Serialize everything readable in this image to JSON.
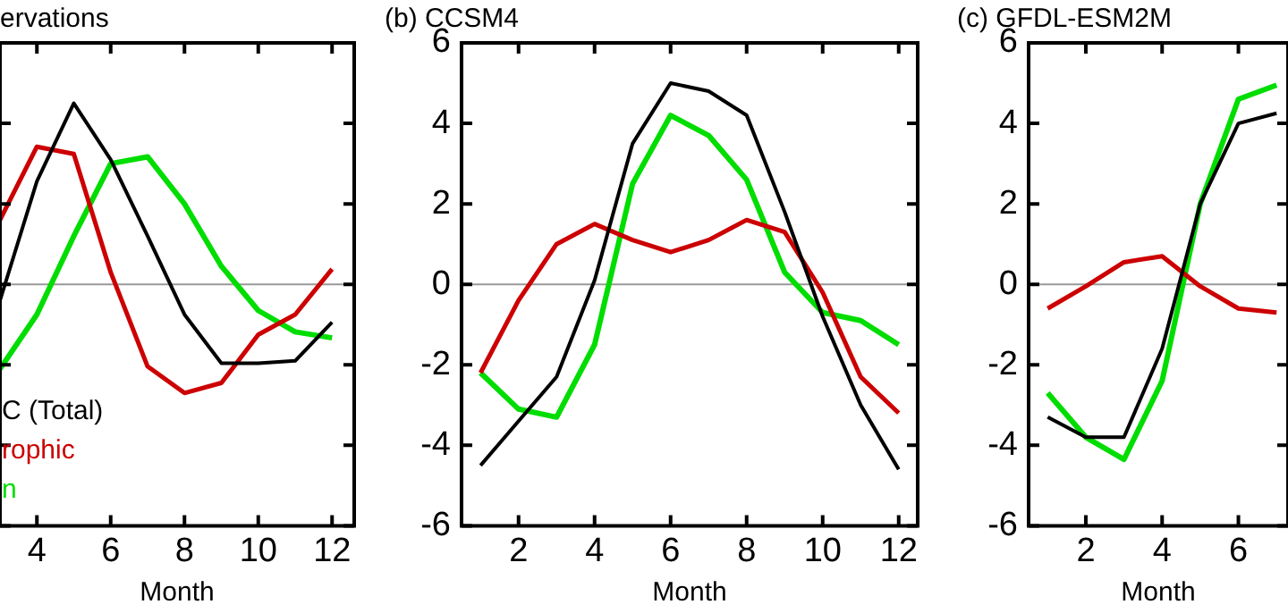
{
  "chart_data": [
    {
      "type": "line",
      "title": "ervations",
      "xlabel": "Month",
      "x": [
        3,
        4,
        5,
        6,
        7,
        8,
        9,
        10,
        11,
        12
      ],
      "xlim": [
        3,
        12.6
      ],
      "xticks": [
        4,
        6,
        8,
        10,
        12
      ],
      "ylim": [
        -6,
        6
      ],
      "yticks": [
        -6,
        -4,
        -2,
        0,
        2,
        4,
        6
      ],
      "tick_labels": "x",
      "legend": "bottom left",
      "grid": false,
      "ref_lines": [
        {
          "axis": "y",
          "value": 0,
          "color": "#999999"
        }
      ],
      "series": [
        {
          "name": "C (Total)",
          "color": "#000000",
          "values": [
            -0.4,
            2.56,
            4.5,
            3.1,
            1.2,
            -0.75,
            -1.96,
            -1.96,
            -1.9,
            -0.94
          ]
        },
        {
          "name": "rophic",
          "color": "#cc0000",
          "values": [
            1.6,
            3.42,
            3.24,
            0.3,
            -2.04,
            -2.7,
            -2.45,
            -1.25,
            -0.75,
            0.38
          ]
        },
        {
          "name": "n",
          "color": "#00dd00",
          "values": [
            -2.1,
            -0.75,
            1.2,
            3.0,
            3.17,
            2.0,
            0.45,
            -0.65,
            -1.18,
            -1.33
          ]
        }
      ]
    },
    {
      "type": "line",
      "title": "(b) CCSM4",
      "xlabel": "Month",
      "x": [
        1,
        2,
        3,
        4,
        5,
        6,
        7,
        8,
        9,
        10,
        11,
        12
      ],
      "xlim": [
        0.5,
        12.5
      ],
      "xticks": [
        2,
        4,
        6,
        8,
        10,
        12
      ],
      "ylim": [
        -6,
        6
      ],
      "yticks": [
        -6,
        -4,
        -2,
        0,
        2,
        4,
        6
      ],
      "grid": false,
      "ref_lines": [
        {
          "axis": "y",
          "value": 0,
          "color": "#999999"
        }
      ],
      "series": [
        {
          "color": "#000000",
          "values": [
            -4.5,
            -3.4,
            -2.3,
            0.1,
            3.5,
            5.0,
            4.8,
            4.2,
            1.8,
            -0.8,
            -3.0,
            -4.6
          ]
        },
        {
          "color": "#cc0000",
          "values": [
            -2.2,
            -0.4,
            1.0,
            1.5,
            1.1,
            0.8,
            1.1,
            1.6,
            1.3,
            -0.2,
            -2.3,
            -3.2
          ]
        },
        {
          "color": "#00dd00",
          "values": [
            -2.2,
            -3.1,
            -3.3,
            -1.5,
            2.5,
            4.2,
            3.7,
            2.6,
            0.3,
            -0.7,
            -0.9,
            -1.5
          ]
        }
      ]
    },
    {
      "type": "line",
      "title": "(c) GFDL-ESM2M",
      "xlabel": "Month",
      "x": [
        1,
        2,
        3,
        4,
        5,
        6,
        7
      ],
      "xlim": [
        0.5,
        7.3
      ],
      "xticks": [
        2,
        4,
        6
      ],
      "ylim": [
        -6,
        6
      ],
      "yticks": [
        -6,
        -4,
        -2,
        0,
        2,
        4,
        6
      ],
      "grid": false,
      "ref_lines": [
        {
          "axis": "y",
          "value": 0,
          "color": "#999999"
        }
      ],
      "series": [
        {
          "color": "#000000",
          "values": [
            -3.3,
            -3.8,
            -3.8,
            -1.6,
            2.0,
            4.0,
            4.25
          ]
        },
        {
          "color": "#cc0000",
          "values": [
            -0.6,
            -0.05,
            0.55,
            0.7,
            -0.05,
            -0.6,
            -0.7
          ]
        },
        {
          "color": "#00dd00",
          "values": [
            -2.7,
            -3.8,
            -4.35,
            -2.4,
            2.0,
            4.6,
            4.95
          ]
        }
      ]
    }
  ]
}
